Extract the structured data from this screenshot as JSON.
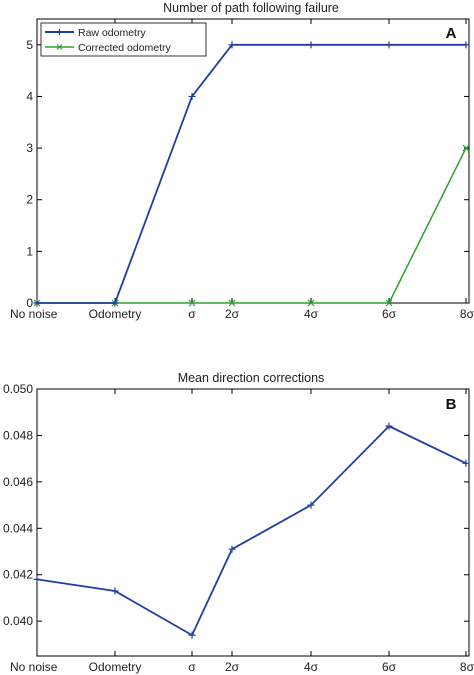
{
  "chart_data": [
    {
      "type": "line",
      "title": "Number of path following failure",
      "panel_label": "A",
      "x": [
        "No noise",
        "Odometry",
        "σ",
        "2σ",
        "4σ",
        "6σ",
        "8σ"
      ],
      "yticks": [
        "0",
        "1",
        "2",
        "3",
        "4",
        "5"
      ],
      "ylim": [
        0,
        5.5
      ],
      "grid": false,
      "legend": "top-left",
      "series": [
        {
          "name": "Raw odometry",
          "color": "#1f3fa0",
          "marker": "plus",
          "values": [
            0,
            0,
            4,
            5,
            5,
            5,
            5
          ]
        },
        {
          "name": "Corrected odometry",
          "color": "#2ca02c",
          "marker": "x",
          "values": [
            0,
            0,
            0,
            0,
            0,
            0,
            3
          ]
        }
      ]
    },
    {
      "type": "line",
      "title": "Mean direction corrections",
      "panel_label": "B",
      "x": [
        "No noise",
        "Odometry",
        "σ",
        "2σ",
        "4σ",
        "6σ",
        "8σ"
      ],
      "yticks": [
        "0.040",
        "0.042",
        "0.044",
        "0.046",
        "0.048",
        "0.050"
      ],
      "ylim": [
        0.0385,
        0.05
      ],
      "grid": false,
      "series": [
        {
          "color": "#1f3fa0",
          "marker": "plus",
          "values": [
            0.0418,
            0.0413,
            0.0394,
            0.0431,
            0.045,
            0.0484,
            0.0468
          ]
        }
      ]
    }
  ]
}
